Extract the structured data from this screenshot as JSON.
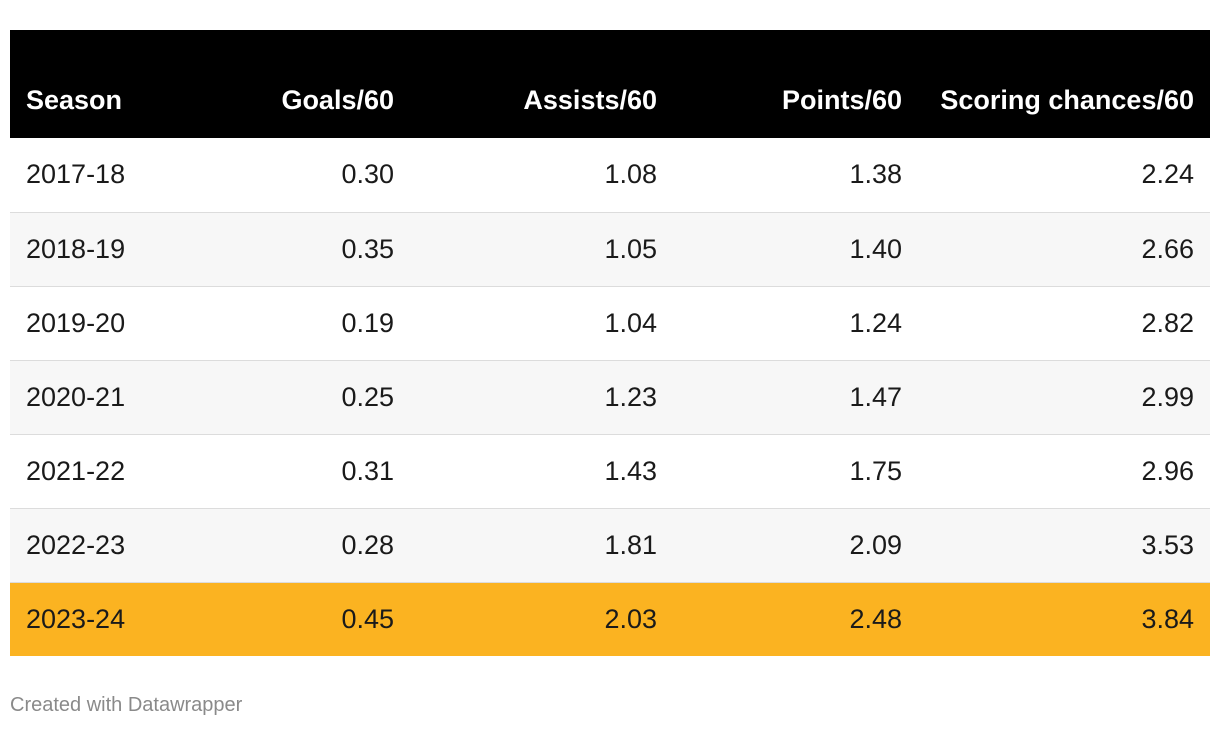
{
  "chart_data": {
    "type": "table",
    "colors": {
      "header_bg": "#000000",
      "header_text": "#ffffff",
      "stripe_bg": "#f7f7f7",
      "highlight_bg": "#fbb321",
      "row_border": "#dcdcdc"
    },
    "columns": [
      "Season",
      "Goals/60",
      "Assists/60",
      "Points/60",
      "Scoring chances/60"
    ],
    "rows": [
      {
        "season": "2017-18",
        "values": [
          "0.30",
          "1.08",
          "1.38",
          "2.24"
        ],
        "highlight": false
      },
      {
        "season": "2018-19",
        "values": [
          "0.35",
          "1.05",
          "1.40",
          "2.66"
        ],
        "highlight": false
      },
      {
        "season": "2019-20",
        "values": [
          "0.19",
          "1.04",
          "1.24",
          "2.82"
        ],
        "highlight": false
      },
      {
        "season": "2020-21",
        "values": [
          "0.25",
          "1.23",
          "1.47",
          "2.99"
        ],
        "highlight": false
      },
      {
        "season": "2021-22",
        "values": [
          "0.31",
          "1.43",
          "1.75",
          "2.96"
        ],
        "highlight": false
      },
      {
        "season": "2022-23",
        "values": [
          "0.28",
          "1.81",
          "2.09",
          "3.53"
        ],
        "highlight": false
      },
      {
        "season": "2023-24",
        "values": [
          "0.45",
          "2.03",
          "2.48",
          "3.84"
        ],
        "highlight": true
      }
    ]
  },
  "footer": {
    "credit": "Created with Datawrapper"
  }
}
